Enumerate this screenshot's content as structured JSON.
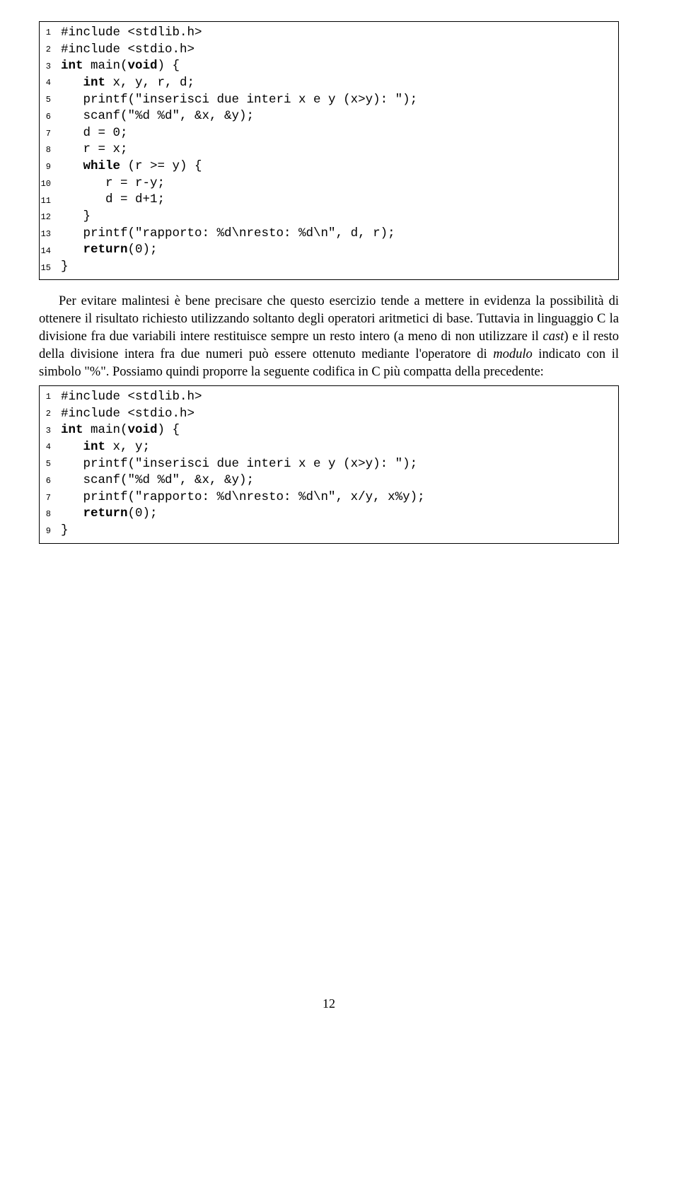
{
  "code1": {
    "l1": "#include <stdlib.h>",
    "l2": "#include <stdio.h>",
    "l3a": "int",
    "l3b": " main(",
    "l3c": "void",
    "l3d": ") {",
    "l4a": "   int",
    "l4b": " x, y, r, d;",
    "l5": "   printf(\"inserisci due interi x e y (x>y): \");",
    "l6": "   scanf(\"%d %d\", &x, &y);",
    "l7": "   d = 0;",
    "l8": "   r = x;",
    "l9a": "   while",
    "l9b": " (r >= y) {",
    "l10": "      r = r-y;",
    "l11": "      d = d+1;",
    "l12": "   }",
    "l13": "   printf(\"rapporto: %d\\nresto: %d\\n\", d, r);",
    "l14a": "   return",
    "l14b": "(0);",
    "l15": "}"
  },
  "paragraph1": {
    "t1": "Per evitare malintesi è bene precisare che questo esercizio tende a mettere in evidenza la possibilità di ottenere il risultato richiesto utilizzando soltanto degli operatori aritmetici di base. Tuttavia in linguaggio C la divisione fra due variabili intere restituisce sempre un resto intero (a meno di non utilizzare il ",
    "i1": "cast",
    "t2": ") e il resto della divisione intera fra due numeri può essere ottenuto mediante l'operatore di ",
    "i2": "modulo",
    "t3": " indicato con il simbolo \"%\". Possiamo quindi proporre la seguente codifica in C più compatta della precedente:"
  },
  "code2": {
    "l1": "#include <stdlib.h>",
    "l2": "#include <stdio.h>",
    "l3a": "int",
    "l3b": " main(",
    "l3c": "void",
    "l3d": ") {",
    "l4a": "   int",
    "l4b": " x, y;",
    "l5": "   printf(\"inserisci due interi x e y (x>y): \");",
    "l6": "   scanf(\"%d %d\", &x, &y);",
    "l7": "   printf(\"rapporto: %d\\nresto: %d\\n\", x/y, x%y);",
    "l8a": "   return",
    "l8b": "(0);",
    "l9": "}"
  },
  "pageNumber": "12",
  "lineNums1": [
    "1",
    "2",
    "3",
    "4",
    "5",
    "6",
    "7",
    "8",
    "9",
    "10",
    "11",
    "12",
    "13",
    "14",
    "15"
  ],
  "lineNums2": [
    "1",
    "2",
    "3",
    "4",
    "5",
    "6",
    "7",
    "8",
    "9"
  ]
}
